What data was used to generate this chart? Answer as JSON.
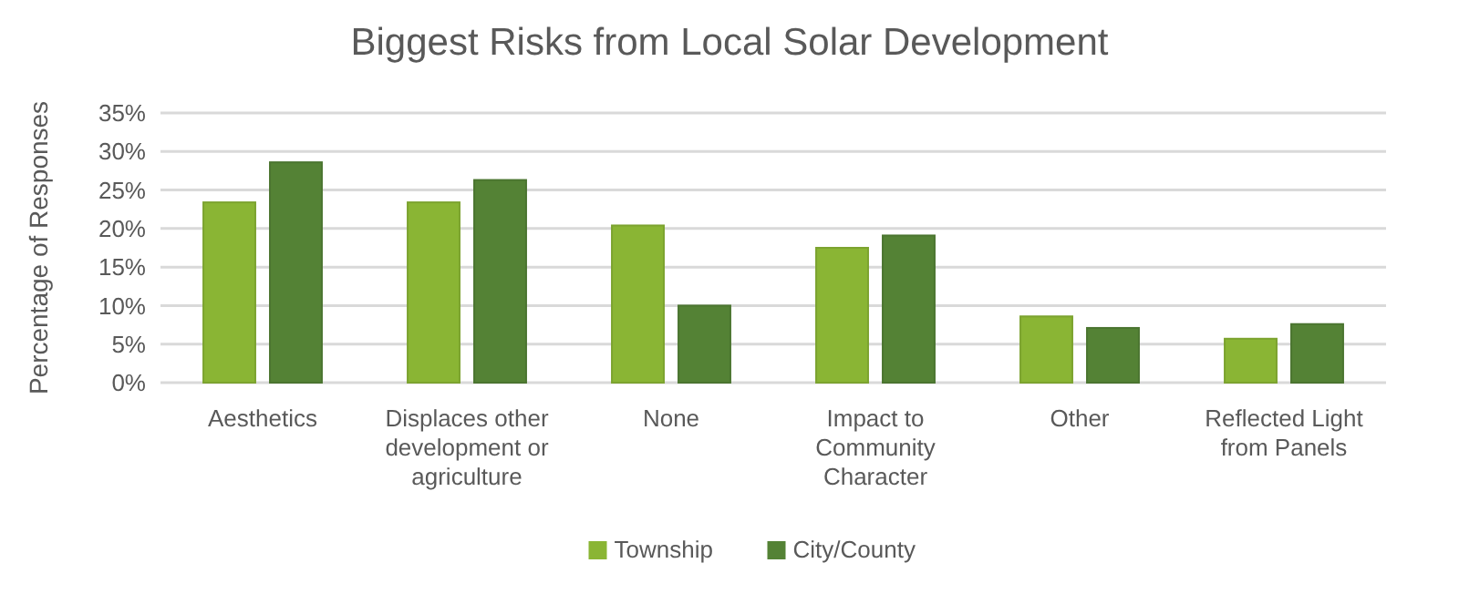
{
  "chart_data": {
    "type": "bar",
    "title": "Biggest Risks from Local Solar Development",
    "ylabel": "Percentage of Responses",
    "categories": [
      "Aesthetics",
      "Displaces other development or agriculture",
      "None",
      "Impact to Community Character",
      "Other",
      "Reflected Light from Panels"
    ],
    "series": [
      {
        "name": "Township",
        "color": "#8ab534",
        "values": [
          23.4,
          23.4,
          20.4,
          17.5,
          8.6,
          5.7
        ]
      },
      {
        "name": "City/County",
        "color": "#548235",
        "values": [
          28.6,
          26.3,
          10.0,
          19.1,
          7.1,
          7.6
        ]
      }
    ],
    "ylim": [
      0,
      35
    ],
    "yticks": [
      {
        "value": 0,
        "label": "0%"
      },
      {
        "value": 5,
        "label": "5%"
      },
      {
        "value": 10,
        "label": "10%"
      },
      {
        "value": 15,
        "label": "15%"
      },
      {
        "value": 20,
        "label": "20%"
      },
      {
        "value": 25,
        "label": "25%"
      },
      {
        "value": 30,
        "label": "30%"
      },
      {
        "value": 35,
        "label": "35%"
      }
    ],
    "grid": "y",
    "legend": "bottom"
  }
}
